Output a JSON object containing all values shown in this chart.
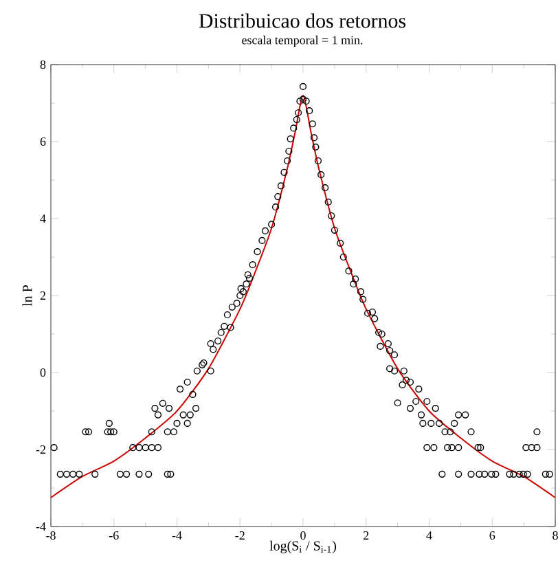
{
  "chart_data": {
    "type": "scatter",
    "title": "Distribuicao dos retornos",
    "subtitle": "escala temporal = 1 min.",
    "xlabel": "log(S$_{i}$ / S$_{i-1}$)",
    "ylabel": "ln P",
    "xlim": [
      -8,
      8
    ],
    "ylim": [
      -4,
      8
    ],
    "xticks": [
      -8,
      -6,
      -4,
      -2,
      0,
      2,
      4,
      6,
      8
    ],
    "yticks": [
      -4,
      -2,
      0,
      2,
      4,
      6,
      8
    ],
    "grid": false,
    "series": [
      {
        "marker": "circle",
        "color": "#000000",
        "x": [
          -7.7,
          -7.5,
          -7.3,
          -7.1,
          -6.6,
          -5.8,
          -5.6,
          -5.2,
          -4.9,
          -4.3,
          -4.2,
          -7.9,
          -5.4,
          -5.2,
          -5.0,
          -4.8,
          -4.6,
          -6.9,
          -6.8,
          -6.2,
          -6.1,
          -6.0,
          -4.8,
          -4.3,
          -4.1,
          -6.15,
          -4.7,
          -4.6,
          -4.45,
          -4.25,
          -4.0,
          -3.9,
          -3.8,
          -3.67,
          -3.67,
          -3.58,
          -3.5,
          -3.4,
          -3.36,
          -3.2,
          -3.15,
          -2.93,
          -2.93,
          -2.85,
          -2.7,
          -2.6,
          -2.5,
          -2.4,
          -2.3,
          -2.25,
          -2.1,
          -2.0,
          -1.9,
          -1.8,
          -1.7,
          -1.97,
          -1.75,
          -1.6,
          -1.45,
          -1.3,
          -1.2,
          -1.0,
          -0.87,
          -0.8,
          -0.7,
          -0.6,
          -0.5,
          -0.45,
          -0.4,
          -0.3,
          -0.2,
          -0.15,
          -0.1,
          0,
          0,
          0.1,
          0.2,
          0.3,
          0.35,
          0.4,
          0.48,
          0.57,
          0.7,
          0.8,
          0.9,
          1.0,
          1.18,
          1.28,
          1.45,
          1.6,
          1.66,
          1.83,
          1.9,
          2.05,
          2.2,
          2.27,
          2.4,
          2.5,
          2.45,
          2.7,
          2.75,
          2.9,
          2.75,
          2.9,
          3.2,
          3.15,
          3.27,
          3.4,
          3.58,
          3.0,
          3.4,
          3.67,
          3.75,
          3.8,
          3.93,
          4.06,
          4.2,
          4.32,
          4.8,
          4.93,
          5.15,
          4.5,
          4.67,
          5.33,
          7.42,
          3.93,
          4.15,
          4.58,
          4.72,
          4.93,
          5.55,
          5.63,
          7.07,
          7.25,
          7.42,
          4.41,
          4.93,
          5.33,
          5.59,
          5.76,
          5.98,
          6.11,
          6.55,
          6.68,
          6.86,
          6.99,
          7.12,
          7.69,
          7.82
        ],
        "values": [
          -2.64,
          -2.64,
          -2.64,
          -2.64,
          -2.64,
          -2.64,
          -2.64,
          -2.64,
          -2.64,
          -2.64,
          -2.64,
          -1.95,
          -1.95,
          -1.95,
          -1.95,
          -1.95,
          -1.95,
          -1.54,
          -1.54,
          -1.54,
          -1.54,
          -1.54,
          -1.54,
          -1.54,
          -1.54,
          -1.32,
          -0.93,
          -1.1,
          -0.8,
          -0.93,
          -1.32,
          -0.43,
          -1.1,
          -0.25,
          -1.32,
          -1.1,
          -0.57,
          -0.93,
          0.04,
          0.2,
          0.25,
          0.04,
          0.75,
          0.6,
          0.82,
          1.04,
          1.2,
          1.5,
          1.17,
          1.7,
          1.8,
          2.0,
          2.1,
          2.3,
          2.45,
          2.18,
          2.54,
          2.8,
          3.14,
          3.43,
          3.68,
          3.85,
          4.3,
          4.57,
          4.85,
          5.2,
          5.5,
          5.75,
          6.07,
          6.35,
          6.57,
          6.75,
          7.05,
          7.43,
          7.1,
          7.05,
          6.8,
          6.46,
          6.1,
          5.86,
          5.5,
          5.14,
          4.8,
          4.43,
          4.07,
          3.7,
          3.36,
          3.0,
          2.64,
          2.3,
          2.43,
          2.1,
          1.9,
          1.54,
          1.57,
          1.4,
          1.04,
          1.0,
          0.68,
          0.75,
          0.57,
          0.46,
          0.1,
          0.04,
          0.04,
          -0.32,
          -0.2,
          -0.25,
          -0.75,
          -0.79,
          -0.93,
          -0.43,
          -1.1,
          -1.32,
          -0.75,
          -1.32,
          -0.93,
          -1.32,
          -1.32,
          -1.1,
          -1.1,
          -1.54,
          -1.54,
          -1.54,
          -1.54,
          -1.95,
          -1.95,
          -1.95,
          -1.95,
          -1.95,
          -1.95,
          -1.95,
          -1.95,
          -1.95,
          -1.95,
          -2.64,
          -2.64,
          -2.64,
          -2.64,
          -2.64,
          -2.64,
          -2.64,
          -2.64,
          -2.64,
          -2.64,
          -2.64,
          -2.64,
          -2.64,
          -2.64
        ]
      },
      {
        "type": "line",
        "marker": "none",
        "color": "#cc0000",
        "x": [
          -8,
          -7,
          -6,
          -5,
          -4,
          -3,
          -2,
          -1.5,
          -1,
          -0.5,
          -0.25,
          0,
          0.25,
          0.5,
          1,
          1.5,
          2,
          3,
          4,
          5,
          6,
          7,
          8
        ],
        "values": [
          -3.25,
          -2.7,
          -2.3,
          -1.7,
          -1.0,
          0.1,
          1.65,
          2.65,
          3.75,
          5.3,
          6.25,
          7.2,
          6.25,
          5.3,
          3.75,
          2.65,
          1.65,
          0.1,
          -1.0,
          -1.7,
          -2.3,
          -2.7,
          -3.25
        ]
      }
    ]
  }
}
